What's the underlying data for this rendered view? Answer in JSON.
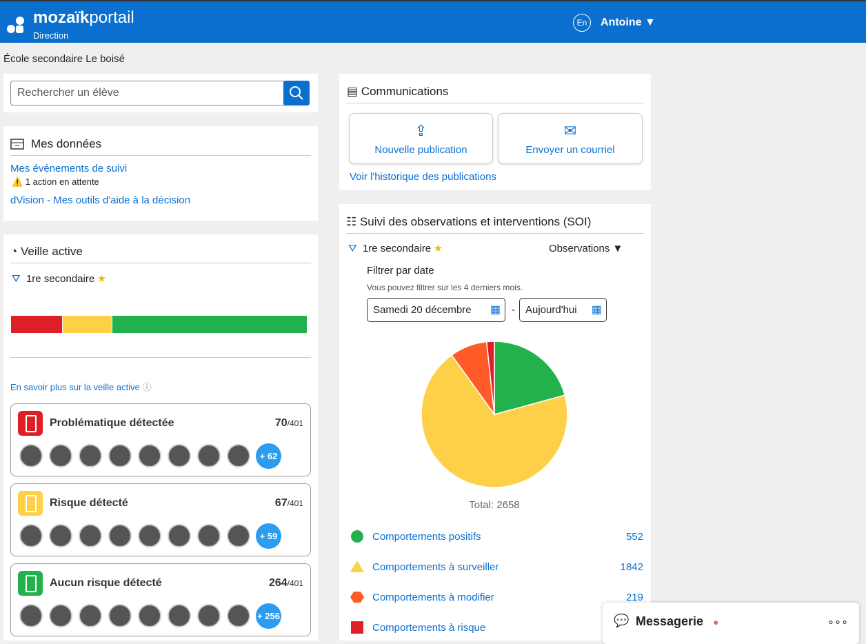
{
  "header": {
    "brand_bold": "mozaïk",
    "brand_light": "portail",
    "role": "Direction",
    "lang": "En",
    "user": "Antoine ▼"
  },
  "school": "École secondaire Le boisé",
  "search": {
    "placeholder": "Rechercher un élève"
  },
  "mes_donnees": {
    "title": "Mes données",
    "links": [
      {
        "label": "Mes événements de suivi",
        "note": "1 action en attente"
      },
      {
        "label": "dVision - Mes outils d'aide à la décision"
      }
    ]
  },
  "veille": {
    "title": "Veille active",
    "filter": "1re secondaire",
    "learn_more": "En savoir plus sur la veille active",
    "total_label": "/401",
    "cards": [
      {
        "title": "Problématique détectée",
        "count": 70,
        "more": "+ 62",
        "color": "#dd1f26"
      },
      {
        "title": "Risque détecté",
        "count": 67,
        "more": "+ 59",
        "color": "#fdd047"
      },
      {
        "title": "Aucun risque détecté",
        "count": 264,
        "more": "+ 256",
        "color": "#22b14c"
      }
    ]
  },
  "communications": {
    "title": "Communications",
    "buttons": [
      "Nouvelle publication",
      "Envoyer un courriel"
    ],
    "history": "Voir l'historique des publications"
  },
  "soi": {
    "title": "Suivi des observations et interventions (SOI)",
    "filter": "1re secondaire",
    "view": "Observations ▼",
    "date_title": "Filtrer par date",
    "date_hint": "Vous pouvez filtrer sur les 4 derniers mois.",
    "date_from": "Samedi 20 décembre",
    "date_to": "Aujourd'hui",
    "total_label": "Total: 2658",
    "chart": {
      "type": "pie",
      "categories": [
        "Comportements positifs",
        "Comportements à surveiller",
        "Comportements à modifier",
        "Comportements à risque"
      ],
      "values": [
        552,
        1842,
        219,
        45
      ],
      "colors": [
        "#22b14c",
        "#fdd047",
        "#ff5a28",
        "#dd1f26"
      ]
    }
  },
  "messagerie": {
    "title": "Messagerie"
  }
}
